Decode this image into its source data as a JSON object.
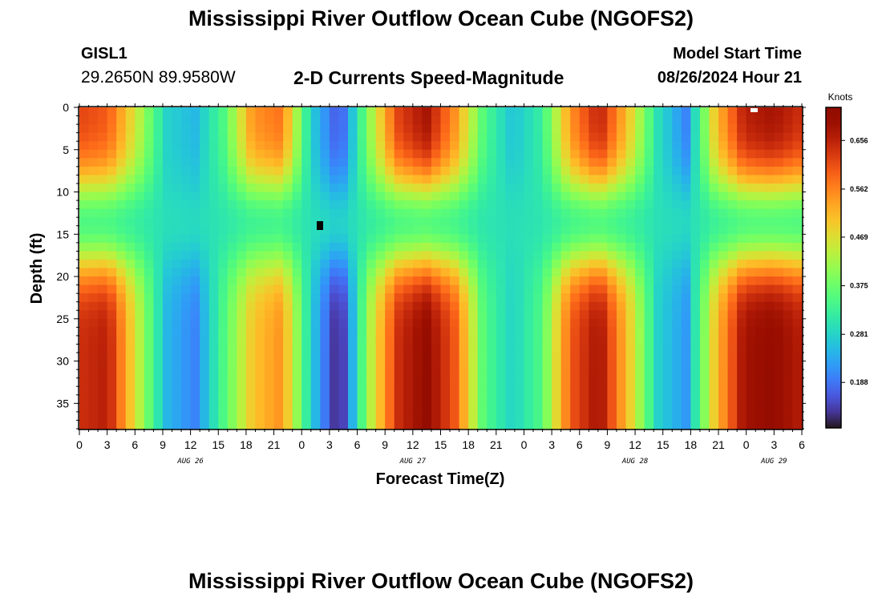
{
  "page": {
    "title": "Mississippi River Outflow Ocean Cube (NGOFS2)",
    "station": "GISL1",
    "coordinates": "29.2650N  89.9580W",
    "subtitle": "2-D Currents Speed-Magnitude",
    "model_start_label": "Model Start Time",
    "model_start_value": "08/26/2024 Hour 21",
    "bottom_title": "Mississippi River Outflow Ocean Cube (NGOFS2)"
  },
  "chart_data": {
    "type": "heatmap",
    "title": "2-D Currents Speed-Magnitude",
    "xlabel": "Forecast Time(Z)",
    "ylabel": "Depth (ft)",
    "x_unit": "hours from Aug 26 00Z",
    "xlim": [
      0,
      78
    ],
    "ylim": [
      0,
      38
    ],
    "y_inverted": true,
    "x_tick_labels": [
      "0",
      "3",
      "6",
      "9",
      "12",
      "15",
      "18",
      "21",
      "0",
      "3",
      "6",
      "9",
      "12",
      "15",
      "18",
      "21",
      "0",
      "3",
      "6",
      "9",
      "12",
      "15",
      "18",
      "21",
      "0",
      "3",
      "6"
    ],
    "y_tick_labels": [
      "0",
      "5",
      "10",
      "15",
      "20",
      "25",
      "30",
      "35"
    ],
    "date_labels": [
      {
        "text": "AUG 26",
        "hour": 12
      },
      {
        "text": "AUG 27",
        "hour": 36
      },
      {
        "text": "AUG 28",
        "hour": 60
      },
      {
        "text": "AUG 29",
        "hour": 75
      }
    ],
    "colorbar": {
      "unit": "Knots",
      "min": 0.1,
      "max": 0.72,
      "tick_values": [
        0.188,
        0.281,
        0.375,
        0.469,
        0.562,
        0.656
      ],
      "tick_labels": [
        "0.188",
        "0.281",
        "0.375",
        "0.469",
        "0.562",
        "0.656"
      ],
      "colormap": "turbo"
    },
    "surface_column_speeds": [
      0.62,
      0.6,
      0.45,
      0.28,
      0.25,
      0.35,
      0.55,
      0.58,
      0.28,
      0.15,
      0.4,
      0.62,
      0.68,
      0.55,
      0.35,
      0.26,
      0.32,
      0.55,
      0.66,
      0.5,
      0.3,
      0.2,
      0.5,
      0.66,
      0.68,
      0.64
    ],
    "bottom_column_speeds": [
      0.64,
      0.66,
      0.45,
      0.25,
      0.2,
      0.35,
      0.5,
      0.55,
      0.28,
      0.1,
      0.42,
      0.64,
      0.7,
      0.6,
      0.35,
      0.28,
      0.35,
      0.6,
      0.68,
      0.5,
      0.28,
      0.22,
      0.5,
      0.68,
      0.7,
      0.66
    ]
  }
}
